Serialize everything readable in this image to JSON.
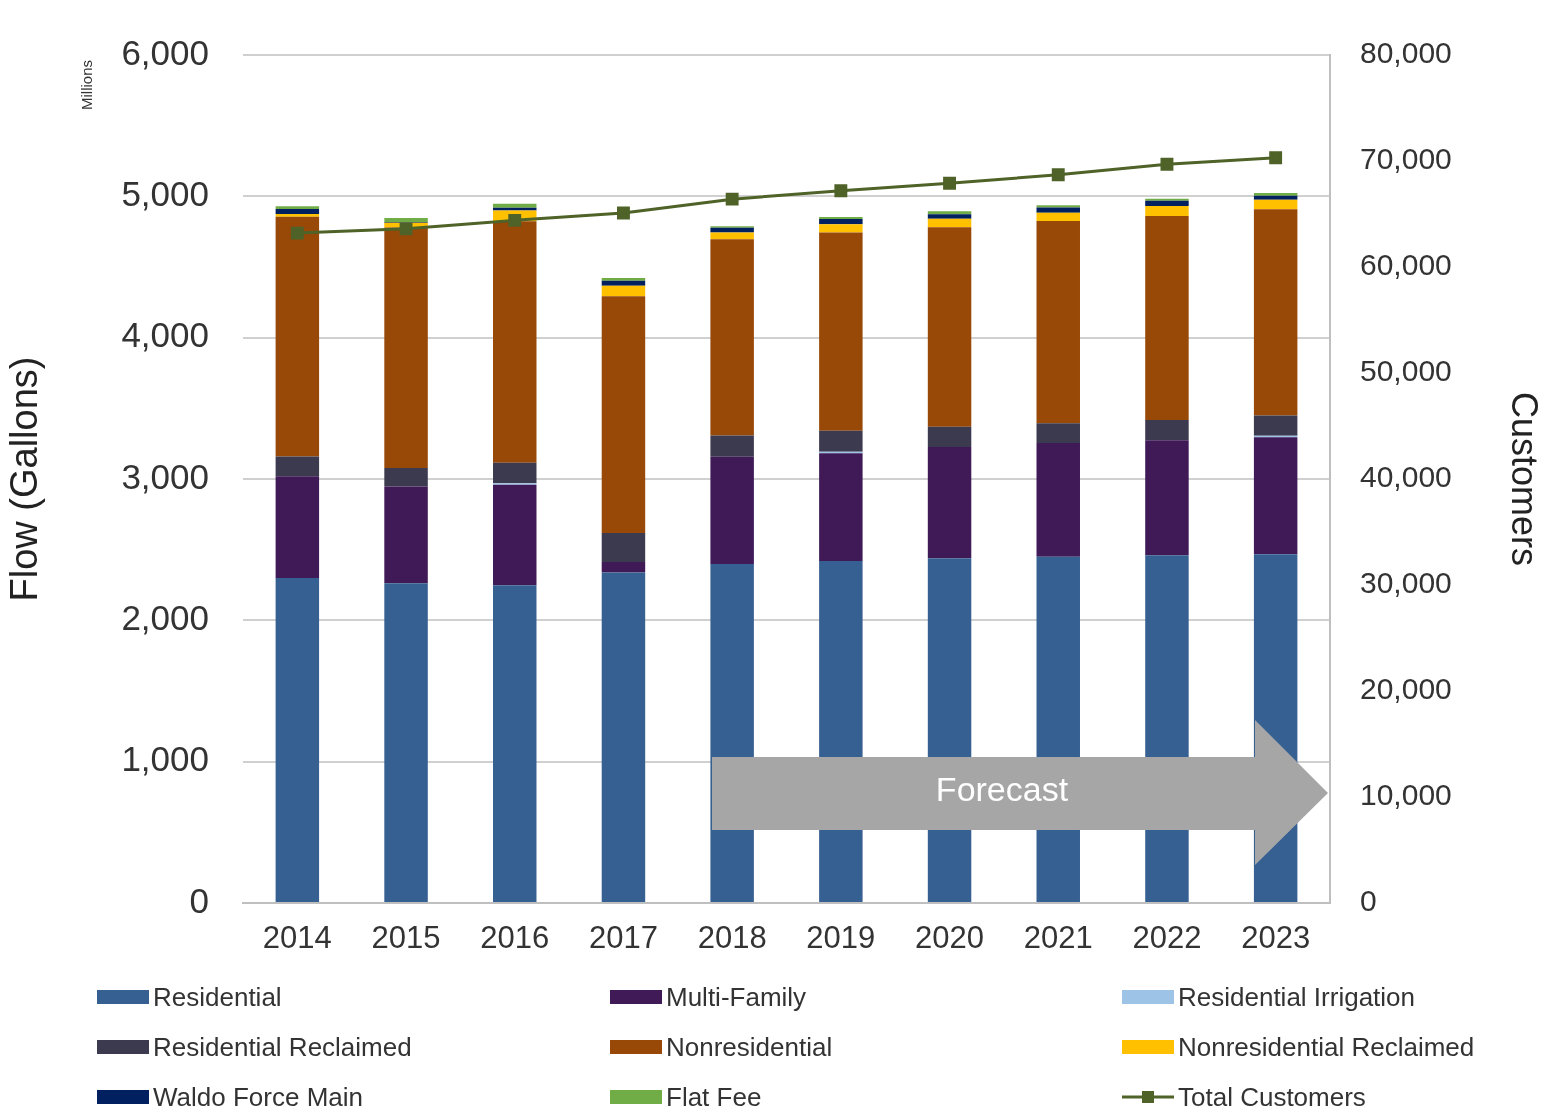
{
  "chart_data": {
    "type": "bar",
    "stacked": true,
    "ylabel": "Flow (Gallons)",
    "y2label": "Customers",
    "categories": [
      "2014",
      "2015",
      "2016",
      "2017",
      "2018",
      "2019",
      "2020",
      "2021",
      "2022",
      "2023"
    ],
    "series": [
      {
        "name": "Residential",
        "color": "#376092",
        "values": [
          2300,
          2262,
          2249,
          2338,
          2399,
          2420,
          2440,
          2450,
          2461,
          2468
        ]
      },
      {
        "name": "Multi-Family",
        "color": "#3f1a57",
        "values": [
          720,
          685,
          711,
          75,
          759,
          762,
          786,
          804,
          813,
          828
        ]
      },
      {
        "name": "Residential Irrigation",
        "color": "#9dc3e6",
        "values": [
          0,
          0,
          10,
          0,
          0,
          10,
          0,
          0,
          0,
          10
        ]
      },
      {
        "name": "Residential Reclaimed",
        "color": "#3c3a4e",
        "values": [
          140,
          130,
          145,
          205,
          150,
          149,
          144,
          140,
          144,
          144
        ]
      },
      {
        "name": "Nonresidential",
        "color": "#984807",
        "values": [
          1695,
          1702,
          1709,
          1675,
          1388,
          1403,
          1411,
          1432,
          1443,
          1458
        ]
      },
      {
        "name": "Nonresidential Reclaimed",
        "color": "#ffc000",
        "values": [
          20,
          34,
          75,
          75,
          48,
          58,
          61,
          57,
          71,
          68
        ]
      },
      {
        "name": "Waldo Force Main",
        "color": "#002060",
        "values": [
          35,
          5,
          21,
          34,
          34,
          37,
          31,
          38,
          37,
          29
        ]
      },
      {
        "name": "Flat Fee",
        "color": "#70ad47",
        "values": [
          20,
          28,
          27,
          20,
          10,
          14,
          22,
          16,
          14,
          19
        ]
      },
      {
        "name": "Total Customers",
        "type": "line",
        "axis": "y2",
        "color": "#4f6228",
        "marker": "square",
        "values": [
          63200,
          63600,
          64400,
          65100,
          66400,
          67200,
          67900,
          68700,
          69700,
          70300
        ]
      }
    ],
    "ylim": [
      0,
      6000
    ],
    "yticks": [
      {
        "value": 0,
        "label": "0"
      },
      {
        "value": 1000,
        "label": "1,000"
      },
      {
        "value": 2000,
        "label": "2,000"
      },
      {
        "value": 3000,
        "label": "3,000"
      },
      {
        "value": 4000,
        "label": "4,000"
      },
      {
        "value": 5000,
        "label": "5,000"
      },
      {
        "value": 6000,
        "label": "6,000"
      }
    ],
    "y2lim": [
      0,
      80000
    ],
    "y2ticks": [
      {
        "value": 0,
        "label": "0"
      },
      {
        "value": 10000,
        "label": "10,000"
      },
      {
        "value": 20000,
        "label": "20,000"
      },
      {
        "value": 30000,
        "label": "30,000"
      },
      {
        "value": 40000,
        "label": "40,000"
      },
      {
        "value": 50000,
        "label": "50,000"
      },
      {
        "value": 60000,
        "label": "60,000"
      },
      {
        "value": 70000,
        "label": "70,000"
      },
      {
        "value": 80000,
        "label": "80,000"
      }
    ],
    "grid": "y",
    "legend": "bottom",
    "annotations": [
      "Millions",
      "Forecast"
    ]
  }
}
